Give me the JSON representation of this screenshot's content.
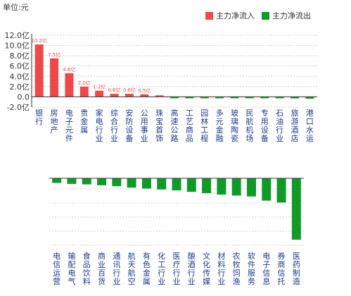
{
  "unit_label": "单位:元",
  "legend": [
    {
      "label": "主力净流入",
      "color": "#f04848"
    },
    {
      "label": "主力净流出",
      "color": "#11992a"
    }
  ],
  "chart_data": [
    {
      "type": "bar",
      "yticks": [
        "12.0亿",
        "10.0亿",
        "8.0亿",
        "6.0亿",
        "4.0亿",
        "2.0亿",
        "0.0",
        "-2.0亿"
      ],
      "ylim": [
        -2.0,
        12.0
      ],
      "grid": true,
      "categories": [
        "银行",
        "房地产",
        "电子元件",
        "贵金属",
        "家电行业",
        "综合行业",
        "安防设备",
        "公用事业",
        "珠宝首饰",
        "高速公路",
        "工艺商品",
        "园林工程",
        "多元金融",
        "玻璃陶瓷",
        "民航机场",
        "专用设备",
        "石油行业",
        "旅游酒店",
        "港口水运"
      ],
      "values": [
        10.2,
        7.5,
        4.6,
        2.0,
        1.2,
        0.6,
        0.6,
        0.5,
        0.3,
        -0.02,
        -0.03,
        -0.05,
        -0.08,
        -0.1,
        -0.15,
        -0.2,
        -0.25,
        -0.3,
        -0.35
      ],
      "data_labels": [
        "10.2亿",
        "7.5亿",
        "4.6亿",
        "2.0亿",
        "1.2亿",
        "0.6亿",
        "0.6亿",
        "0.5亿",
        "",
        "",
        "",
        "",
        "",
        "",
        "",
        "",
        "",
        "",
        ""
      ]
    },
    {
      "type": "bar",
      "grid": true,
      "categories": [
        "电信运营",
        "输配电气",
        "食品饮料",
        "商业百货",
        "通讯行业",
        "航天航空",
        "有色金属",
        "化工行业",
        "医疗行业",
        "酿酒行业",
        "文化传媒",
        "材料行业",
        "农牧饲渔",
        "软件服务",
        "电子信息",
        "券商信托",
        "医药制造"
      ],
      "values": [
        -0.5,
        -0.6,
        -0.65,
        -0.75,
        -0.85,
        -1.0,
        -1.1,
        -1.2,
        -1.3,
        -1.45,
        -1.6,
        -1.75,
        -1.85,
        -1.95,
        -2.4,
        -2.6,
        -6.6
      ]
    }
  ]
}
